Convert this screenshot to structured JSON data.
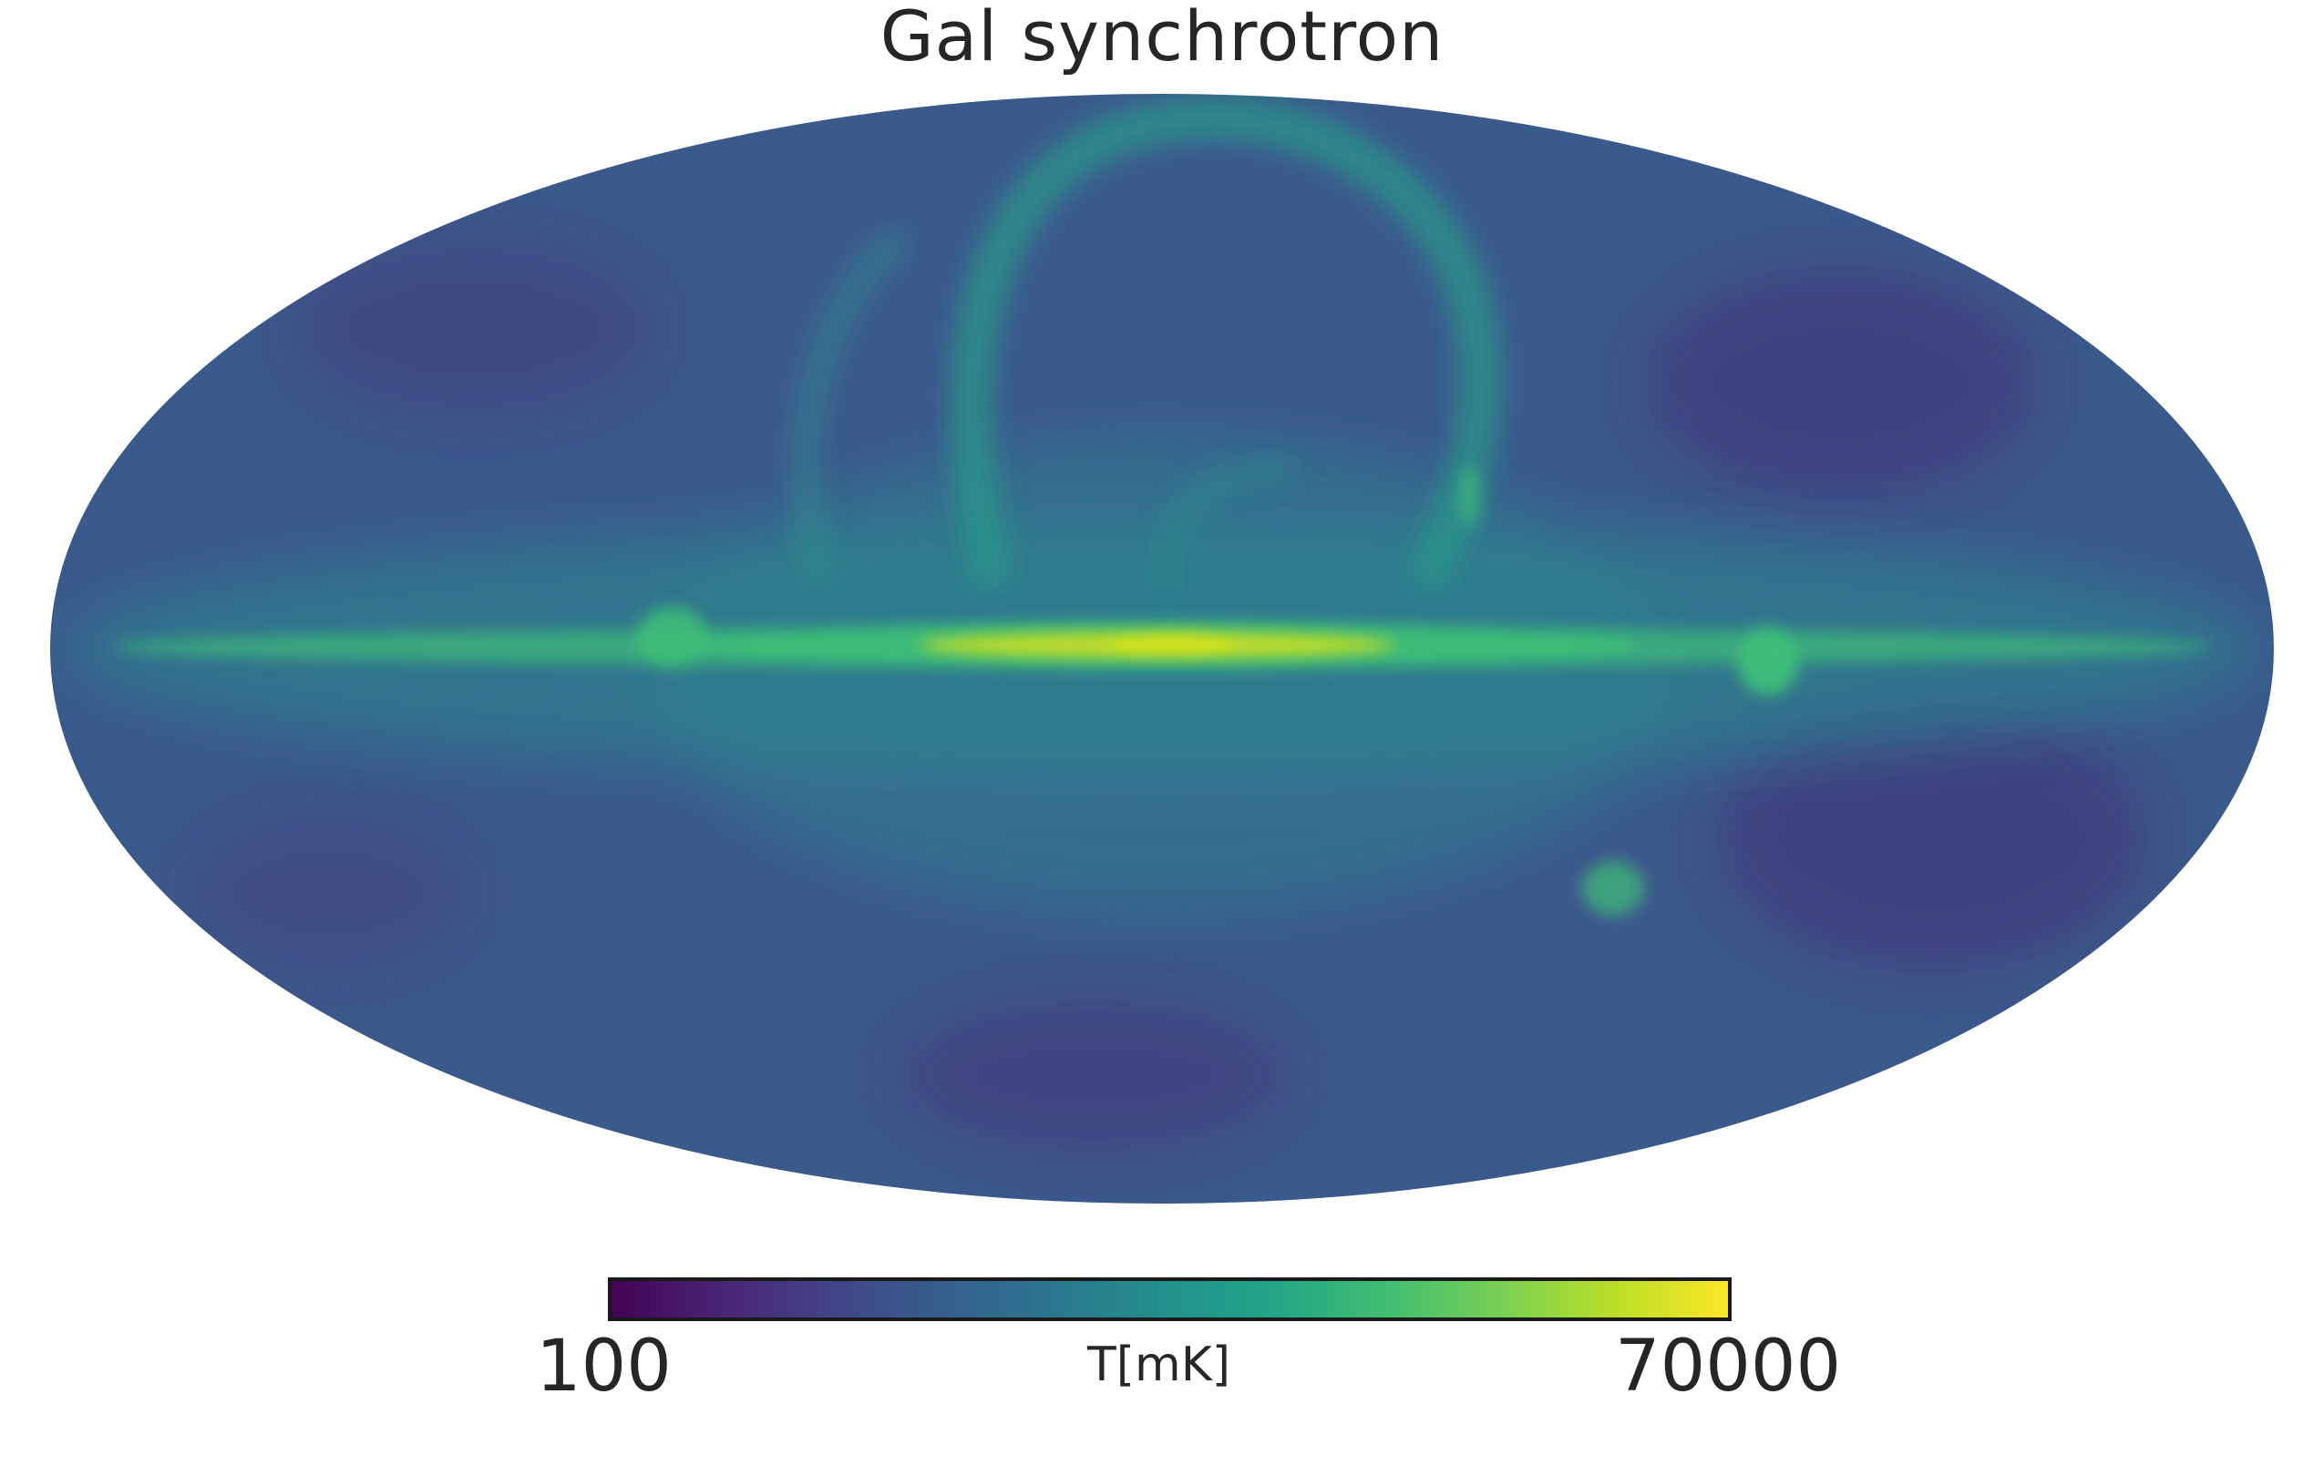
{
  "figure": {
    "title": "Gal synchrotron",
    "projection": "mollweide",
    "colormap": "viridis",
    "colorbar": {
      "min_label": "100",
      "max_label": "70000",
      "unit_label": "T[mK]",
      "min": 100,
      "max": 70000,
      "colors": [
        "#440154",
        "#482475",
        "#414487",
        "#355f8d",
        "#2a788e",
        "#21918c",
        "#22a884",
        "#44bf70",
        "#7ad151",
        "#bddf26",
        "#fde725"
      ]
    },
    "map_colors": {
      "background": "#3b5a8c",
      "disk": "#2e7f8e",
      "plane": "#3fbf78",
      "core": "#d7e219",
      "spur": "#2a9a8a",
      "cold": "#452d78"
    }
  }
}
